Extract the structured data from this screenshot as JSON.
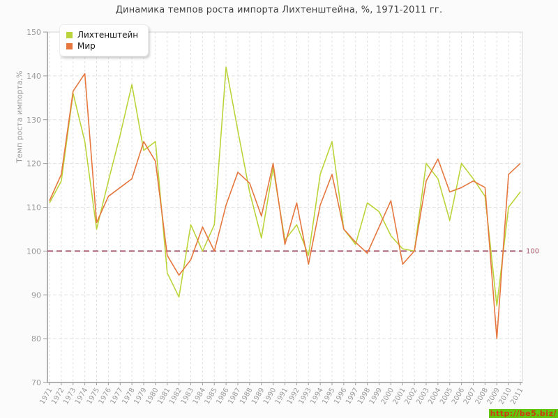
{
  "page": {
    "title": "Динамика темпов роста импорта Лихтенштейна, %, 1971-2011 гг."
  },
  "chart": {
    "y_axis_label": "Темп роста импорта,%"
  },
  "watermark": {
    "text": "http://be5.biz/"
  },
  "chart_data": {
    "type": "line",
    "title": "Динамика темпов роста импорта Лихтенштейна, %, 1971-2011 гг.",
    "xlabel": "",
    "ylabel": "Темп роста импорта,%",
    "x": [
      1971,
      1972,
      1973,
      1974,
      1975,
      1976,
      1977,
      1978,
      1979,
      1980,
      1981,
      1982,
      1983,
      1984,
      1985,
      1986,
      1987,
      1988,
      1989,
      1990,
      1991,
      1992,
      1993,
      1994,
      1995,
      1996,
      1997,
      1998,
      1999,
      2000,
      2001,
      2002,
      2003,
      2004,
      2005,
      2006,
      2007,
      2008,
      2009,
      2010,
      2011
    ],
    "series": [
      {
        "name": "Лихтенштейн",
        "color": "#bcd43b",
        "values": [
          111,
          116,
          136,
          125,
          105,
          116,
          126.5,
          138,
          123,
          125,
          95,
          89.5,
          106,
          100,
          106,
          142,
          127.5,
          113.5,
          103,
          119,
          102.5,
          106,
          99,
          117.5,
          125,
          105,
          101.5,
          111,
          109,
          103.5,
          100.5,
          100,
          120,
          116.5,
          107,
          120,
          116.5,
          112.5,
          87.5,
          110,
          113.5
        ]
      },
      {
        "name": "Мир",
        "color": "#e5773f",
        "values": [
          111.5,
          117.5,
          136.5,
          140.5,
          106.5,
          112.5,
          114.5,
          116.5,
          125,
          120.5,
          99,
          94.5,
          98,
          105.5,
          100,
          110.5,
          118,
          115.5,
          108,
          120,
          101.5,
          111,
          97,
          110.5,
          117.5,
          105,
          102,
          99.5,
          105.5,
          111.5,
          97,
          100,
          116,
          121,
          113.5,
          114.5,
          116,
          114.5,
          80,
          117.5,
          120
        ]
      }
    ],
    "ylim": [
      70,
      150
    ],
    "yticks": [
      70,
      80,
      90,
      100,
      110,
      120,
      130,
      140,
      150
    ],
    "ref_line": {
      "value": 100,
      "label": "100",
      "color": "#a85b6e"
    },
    "grid": true,
    "legend_position": "top-left",
    "grid_color": "#e0e0e0",
    "axis_color": "#9a9a9a",
    "tick_label_color": "#9a9a9a"
  }
}
